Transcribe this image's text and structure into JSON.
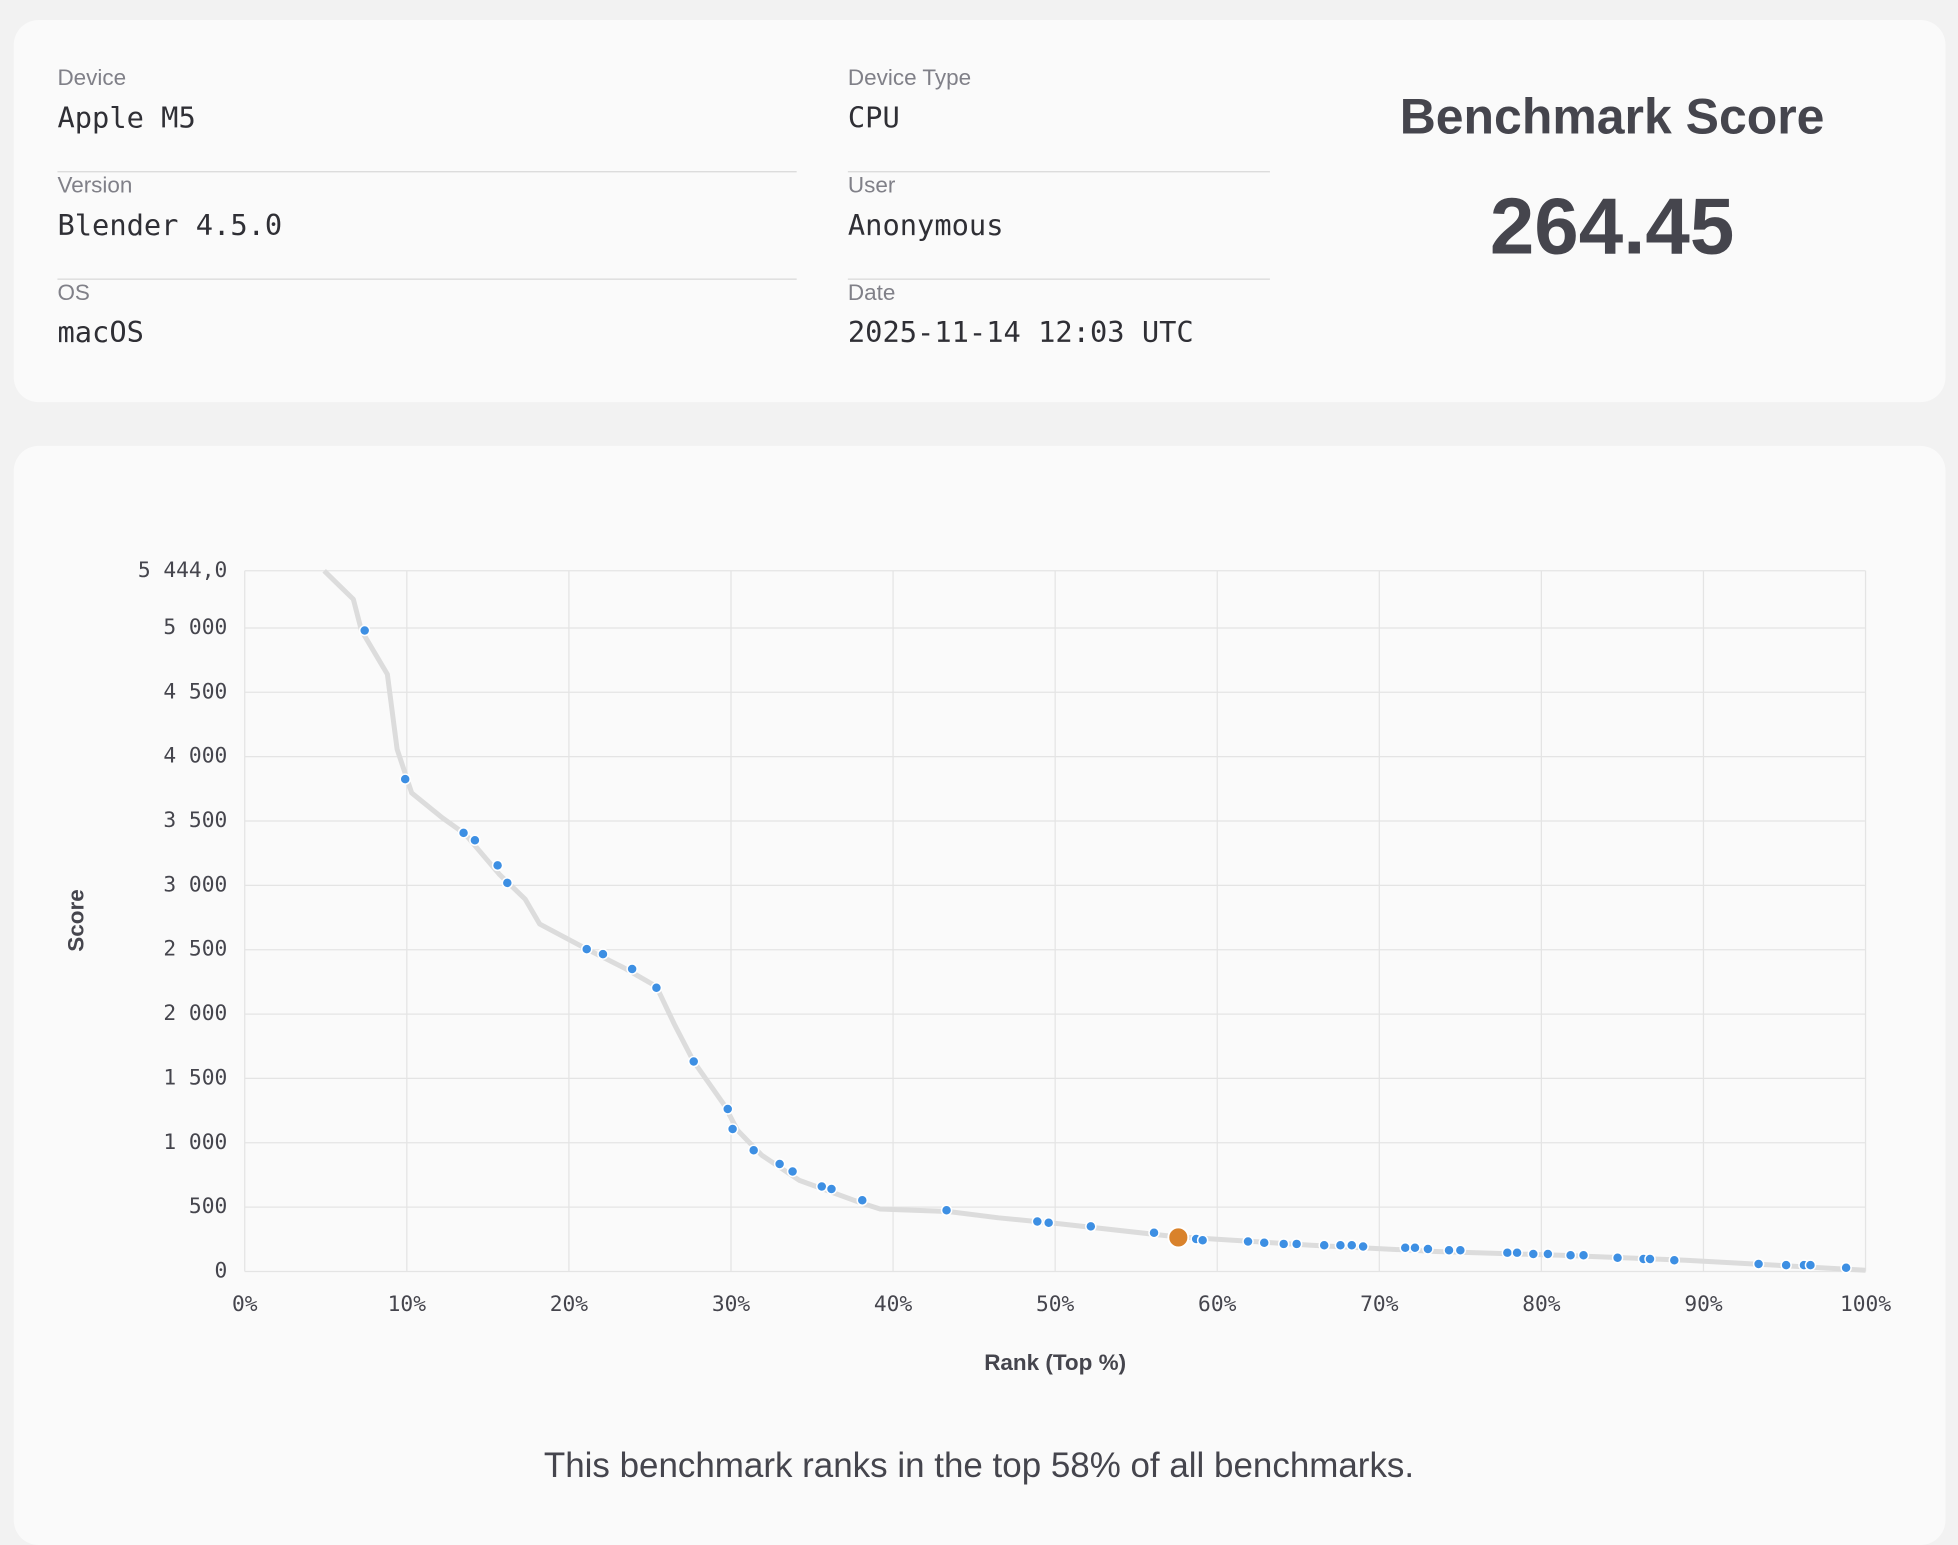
{
  "info": {
    "columns": [
      [
        {
          "label": "Device",
          "value": "Apple M5"
        },
        {
          "label": "Version",
          "value": "Blender 4.5.0"
        },
        {
          "label": "OS",
          "value": "macOS"
        }
      ],
      [
        {
          "label": "Device Type",
          "value": "CPU"
        },
        {
          "label": "User",
          "value": "Anonymous"
        },
        {
          "label": "Date",
          "value": "2025-11-14 12:03 UTC"
        }
      ]
    ],
    "score_title": "Benchmark Score",
    "score": "264.45"
  },
  "chart_data": {
    "type": "scatter",
    "xlabel": "Rank (Top %)",
    "ylabel": "Score",
    "xlim": [
      0,
      100
    ],
    "ylim": [
      0,
      5444
    ],
    "xticks": [
      {
        "value": 0,
        "label": "0%"
      },
      {
        "value": 10,
        "label": "10%"
      },
      {
        "value": 20,
        "label": "20%"
      },
      {
        "value": 30,
        "label": "30%"
      },
      {
        "value": 40,
        "label": "40%"
      },
      {
        "value": 50,
        "label": "50%"
      },
      {
        "value": 60,
        "label": "60%"
      },
      {
        "value": 70,
        "label": "70%"
      },
      {
        "value": 80,
        "label": "80%"
      },
      {
        "value": 90,
        "label": "90%"
      },
      {
        "value": 100,
        "label": "100%"
      }
    ],
    "yticks": [
      0,
      500,
      {
        "value": 1000,
        "label": "1 000"
      },
      {
        "value": 1500,
        "label": "1 500"
      },
      {
        "value": 2000,
        "label": "2 000"
      },
      {
        "value": 2500,
        "label": "2 500"
      },
      {
        "value": 3000,
        "label": "3 000"
      },
      {
        "value": 3500,
        "label": "3 500"
      },
      {
        "value": 4000,
        "label": "4 000"
      },
      {
        "value": 4500,
        "label": "4 500"
      },
      {
        "value": 5000,
        "label": "5 000"
      },
      {
        "value": 5444,
        "label": "5 444,0"
      }
    ],
    "grid": true,
    "line": {
      "color": "#dcdcdc",
      "x": [
        4.9,
        6.7,
        7.2,
        8.8,
        9.4,
        10.3,
        12.2,
        13.6,
        15.7,
        17.3,
        18.2,
        21.1,
        23.4,
        25.4,
        26.5,
        27.7,
        29.6,
        30.4,
        31.9,
        34.2,
        38.0,
        39.2,
        43.4,
        46.5,
        50.4,
        57.3,
        65.8,
        73.5,
        81.2,
        88.9,
        100
      ],
      "y": [
        5444,
        5223,
        4980,
        4640,
        4058,
        3718,
        3524,
        3398,
        3087,
        2893,
        2699,
        2505,
        2359,
        2214,
        1922,
        1631,
        1291,
        1097,
        903,
        709,
        534,
        485,
        466,
        417,
        369,
        272,
        204,
        155,
        126,
        87,
        10
      ]
    },
    "points": {
      "color": "#3d8fe3",
      "x": [
        7.4,
        9.9,
        13.5,
        14.2,
        15.6,
        16.2,
        21.1,
        22.1,
        23.9,
        25.4,
        27.7,
        29.8,
        30.1,
        31.4,
        33.0,
        33.8,
        35.6,
        36.2,
        38.1,
        43.3,
        48.9,
        49.6,
        52.2,
        56.1,
        58.7,
        59.1,
        61.9,
        62.9,
        64.1,
        64.9,
        66.6,
        67.6,
        68.3,
        69.0,
        71.6,
        72.2,
        73.0,
        74.3,
        75.0,
        77.9,
        78.5,
        79.5,
        80.4,
        81.8,
        82.6,
        84.7,
        86.3,
        86.7,
        88.2,
        93.4,
        95.1,
        96.2,
        96.6,
        98.8
      ],
      "y": [
        4980,
        3825,
        3408,
        3350,
        3155,
        3019,
        2505,
        2466,
        2350,
        2204,
        1631,
        1262,
        1107,
        942,
        835,
        777,
        660,
        641,
        553,
        476,
        388,
        379,
        350,
        301,
        252,
        243,
        233,
        223,
        214,
        214,
        204,
        204,
        204,
        194,
        184,
        184,
        175,
        165,
        165,
        146,
        146,
        136,
        136,
        126,
        126,
        107,
        97,
        97,
        87,
        58,
        49,
        49,
        49,
        29
      ]
    },
    "highlight": {
      "color": "#d9822b",
      "x": 57.6,
      "y": 264.45
    },
    "footer": "This benchmark ranks in the top 58% of all benchmarks."
  }
}
